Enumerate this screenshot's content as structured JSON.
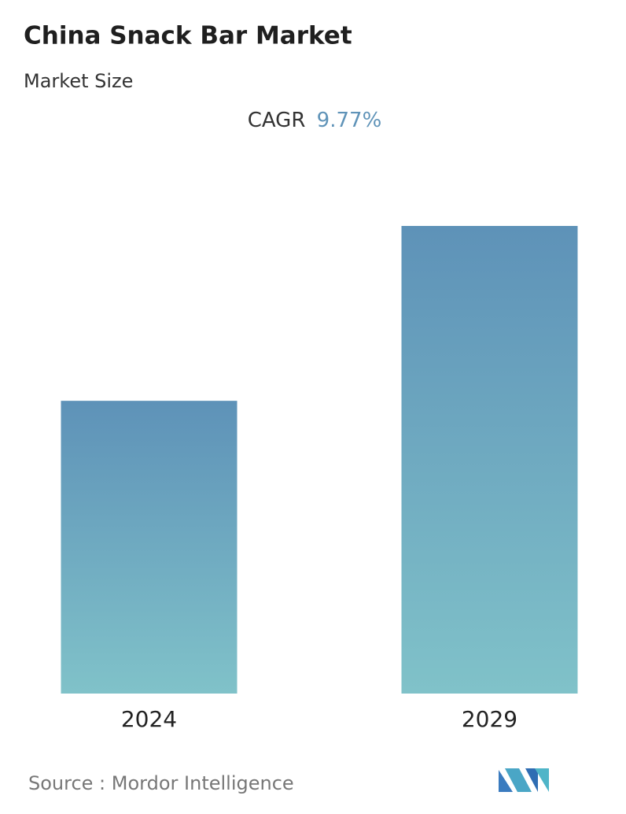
{
  "chart_data": {
    "type": "bar",
    "title": "China Snack Bar Market",
    "subtitle": "Market Size",
    "cagr_label": "CAGR",
    "cagr": "9.77%",
    "categories": [
      "2024",
      "2029"
    ],
    "values": [
      62.6,
      100
    ],
    "ylim": [
      0,
      100
    ],
    "color_top": "#5e92b8",
    "color_bottom": "#80c2c9",
    "source": "Source :  Mordor Intelligence"
  }
}
